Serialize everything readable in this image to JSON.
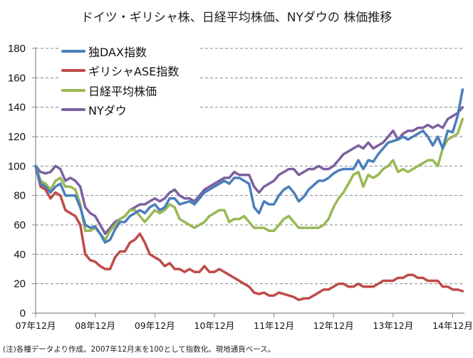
{
  "title": "ドイツ・ギリシャ株、日経平均株価、NYダウの 株価推移",
  "note": "(注)各種データより作成。2007年12月末を100として指数化。現地通貨ベース。",
  "chart_data": {
    "type": "line",
    "title": "ドイツ・ギリシャ株、日経平均株価、NYダウの 株価推移",
    "xlabel": "",
    "ylabel": "",
    "ylim": [
      0,
      180
    ],
    "yticks": [
      "0",
      "20",
      "40",
      "60",
      "80",
      "100",
      "120",
      "140",
      "160",
      "180"
    ],
    "xticks": [
      "07年12月",
      "08年12月",
      "09年12月",
      "10年12月",
      "11年12月",
      "12年12月",
      "13年12月",
      "14年12月"
    ],
    "x_start": "2007-12",
    "x_frequency": "monthly",
    "grid": "horizontal dashed",
    "legend_position": "top-left",
    "series": [
      {
        "name": "独DAX指数",
        "color": "#4a7ebb",
        "values": [
          100,
          88,
          86,
          82,
          86,
          88,
          80,
          80,
          80,
          72,
          60,
          58,
          59,
          54,
          48,
          50,
          57,
          62,
          62,
          66,
          68,
          70,
          68,
          72,
          74,
          70,
          72,
          78,
          78,
          74,
          75,
          76,
          74,
          78,
          82,
          84,
          86,
          88,
          90,
          88,
          92,
          92,
          90,
          88,
          72,
          68,
          76,
          74,
          74,
          80,
          84,
          86,
          82,
          76,
          79,
          84,
          87,
          90,
          90,
          92,
          95,
          97,
          98,
          98,
          98,
          104,
          98,
          104,
          103,
          108,
          112,
          116,
          117,
          118,
          120,
          118,
          120,
          122,
          124,
          120,
          114,
          120,
          112,
          124,
          123,
          134,
          152
        ]
      },
      {
        "name": "ギリシャASE指数",
        "color": "#be4b48",
        "values": [
          100,
          86,
          84,
          78,
          82,
          80,
          70,
          68,
          66,
          60,
          40,
          36,
          35,
          32,
          30,
          30,
          38,
          42,
          42,
          48,
          50,
          54,
          48,
          40,
          38,
          36,
          32,
          34,
          30,
          30,
          28,
          30,
          28,
          28,
          32,
          28,
          28,
          30,
          28,
          26,
          24,
          22,
          20,
          18,
          14,
          13,
          14,
          12,
          12,
          14,
          13,
          12,
          11,
          9,
          10,
          10,
          12,
          14,
          16,
          16,
          18,
          20,
          20,
          18,
          18,
          20,
          18,
          18,
          18,
          20,
          22,
          22,
          22,
          24,
          24,
          26,
          26,
          24,
          24,
          22,
          22,
          22,
          18,
          18,
          16,
          16,
          15
        ]
      },
      {
        "name": "日経平均株価",
        "color": "#98b954",
        "values": [
          100,
          90,
          88,
          84,
          90,
          92,
          86,
          86,
          84,
          74,
          56,
          56,
          58,
          54,
          50,
          56,
          60,
          64,
          66,
          70,
          70,
          66,
          62,
          66,
          70,
          68,
          70,
          74,
          72,
          64,
          62,
          60,
          58,
          60,
          62,
          66,
          68,
          70,
          70,
          62,
          64,
          64,
          66,
          62,
          58,
          58,
          58,
          56,
          56,
          60,
          64,
          66,
          62,
          58,
          58,
          58,
          58,
          58,
          60,
          64,
          72,
          78,
          82,
          88,
          94,
          96,
          86,
          94,
          92,
          94,
          98,
          100,
          104,
          96,
          98,
          96,
          98,
          100,
          102,
          104,
          104,
          100,
          112,
          118,
          120,
          122,
          132
        ]
      },
      {
        "name": "NYダウ",
        "color": "#7d60a0",
        "values": [
          100,
          96,
          95,
          96,
          100,
          98,
          90,
          92,
          90,
          86,
          72,
          68,
          66,
          60,
          54,
          58,
          62,
          64,
          66,
          70,
          72,
          74,
          74,
          76,
          78,
          76,
          78,
          82,
          84,
          80,
          78,
          78,
          76,
          80,
          84,
          86,
          88,
          90,
          92,
          92,
          96,
          94,
          94,
          94,
          86,
          82,
          86,
          88,
          90,
          94,
          96,
          98,
          98,
          94,
          96,
          98,
          98,
          100,
          98,
          98,
          100,
          104,
          108,
          110,
          112,
          114,
          112,
          116,
          112,
          114,
          116,
          120,
          124,
          118,
          122,
          124,
          124,
          126,
          126,
          128,
          126,
          128,
          126,
          132,
          134,
          136,
          140
        ]
      }
    ]
  }
}
